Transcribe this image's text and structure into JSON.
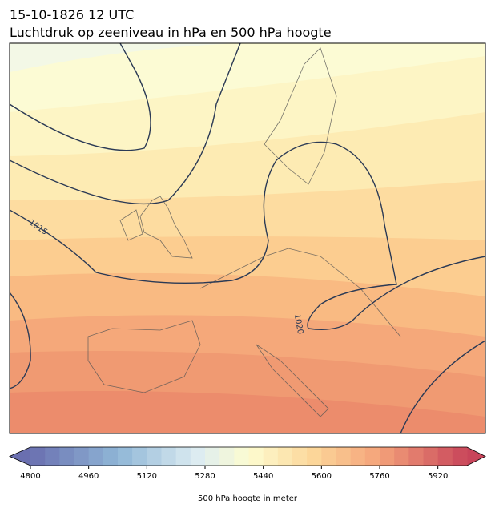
{
  "title": "15-10-1826 12 UTC",
  "subtitle": "Luchtdruk op zeeniveau in hPa en 500 hPa hoogte",
  "contour_labels": [
    "1015",
    "1020"
  ],
  "colorbar": {
    "label": "500 hPa hoogte in meter",
    "lim": [
      4800,
      6000
    ],
    "step": 40,
    "ticks": [
      4800,
      4960,
      5120,
      5280,
      5440,
      5600,
      5760,
      5920
    ]
  }
}
